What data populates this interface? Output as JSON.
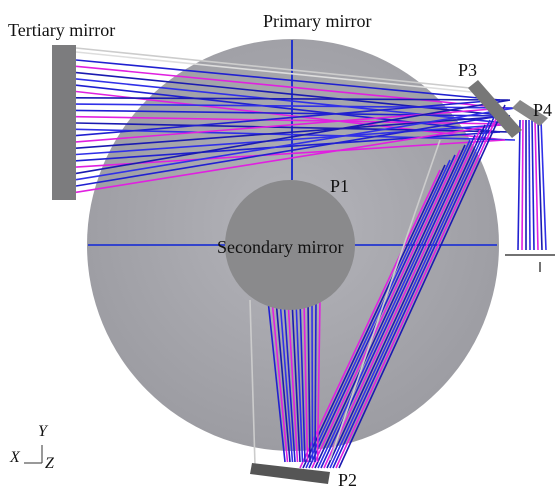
{
  "labels": {
    "tertiary": "Tertiary mirror",
    "primary": "Primary mirror",
    "p3": "P3",
    "p4": "P4",
    "p1": "P1",
    "secondary": "Secondary mirror",
    "p2": "P2"
  },
  "axes": {
    "y": "Y",
    "x": "X",
    "z": "Z"
  }
}
